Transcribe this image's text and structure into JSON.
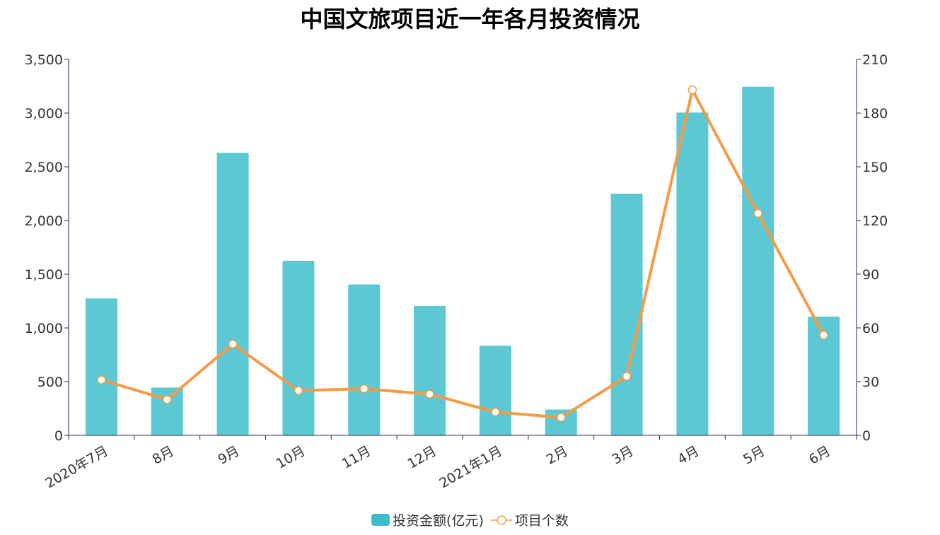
{
  "chart_data": {
    "type": "bar",
    "title": "中国文旅项目近一年各月投资情况",
    "categories": [
      "2020年7月",
      "8月",
      "9月",
      "10月",
      "11月",
      "12月",
      "2021年1月",
      "2月",
      "3月",
      "4月",
      "5月",
      "6月"
    ],
    "series": [
      {
        "name": "投资金额(亿元)",
        "type": "bar",
        "axis": "left",
        "color": "#5BC8D4",
        "values": [
          1275,
          445,
          2630,
          1625,
          1405,
          1205,
          835,
          240,
          2250,
          3005,
          3245,
          1105
        ]
      },
      {
        "name": "项目个数",
        "type": "line",
        "axis": "right",
        "color": "#F59A45",
        "values": [
          31,
          20,
          51,
          25,
          26,
          23,
          13,
          10,
          33,
          193,
          124,
          56
        ]
      }
    ],
    "y_left": {
      "min": 0,
      "max": 3500,
      "ticks": [
        "0",
        "500",
        "1,000",
        "1,500",
        "2,000",
        "2,500",
        "3,000",
        "3,500"
      ]
    },
    "y_right": {
      "min": 0,
      "max": 210,
      "ticks": [
        "0",
        "30",
        "60",
        "90",
        "120",
        "150",
        "180",
        "210"
      ]
    },
    "axis_color": "#23275F",
    "grid": false,
    "legend_position": "bottom"
  }
}
